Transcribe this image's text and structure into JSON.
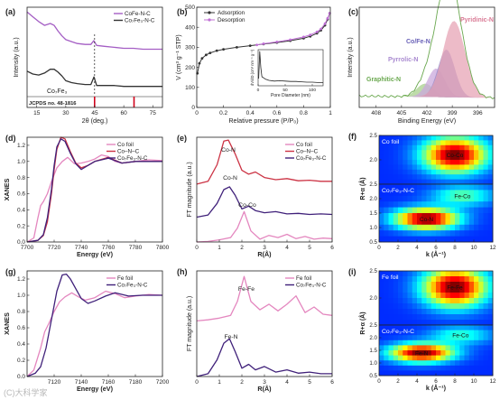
{
  "watermark": "(C)大科学家",
  "chart_data": [
    {
      "panel_label": "(a)",
      "type": "line",
      "xlabel": "2θ (deg.)",
      "ylabel": "Intensity (a.u.)",
      "xlim": [
        10,
        80
      ],
      "xticks": [
        15,
        30,
        45,
        60,
        75
      ],
      "series": [
        {
          "name": "CoFe-N-C",
          "color": "#a45ec4",
          "x": [
            10,
            13,
            16,
            19,
            22,
            24,
            26,
            28,
            30,
            33,
            36,
            40,
            43,
            44.5,
            46,
            50,
            55,
            60,
            65,
            70,
            75,
            80
          ],
          "y": [
            1.0,
            0.95,
            0.9,
            0.86,
            0.88,
            0.86,
            0.8,
            0.75,
            0.71,
            0.69,
            0.67,
            0.66,
            0.66,
            0.7,
            0.65,
            0.64,
            0.63,
            0.62,
            0.62,
            0.61,
            0.61,
            0.61
          ]
        },
        {
          "name": "Co₇Fe₃-N-C",
          "color": "#333333",
          "x": [
            10,
            13,
            16,
            19,
            22,
            24,
            26,
            28,
            30,
            33,
            36,
            40,
            43,
            44.6,
            46,
            50,
            55,
            60,
            65,
            70,
            75,
            80
          ],
          "y": [
            0.38,
            0.35,
            0.34,
            0.36,
            0.4,
            0.4,
            0.37,
            0.33,
            0.28,
            0.26,
            0.25,
            0.24,
            0.24,
            0.32,
            0.23,
            0.23,
            0.23,
            0.22,
            0.22,
            0.22,
            0.22,
            0.22
          ]
        }
      ],
      "reference": {
        "name": "Co₇Fe₃",
        "pdf": "JCPDS no. 48-1816",
        "peaks": [
          44.9,
          65.3
        ]
      },
      "dashed_line_x": 44.9
    },
    {
      "panel_label": "(b)",
      "type": "line",
      "xlabel": "Relative pressure (P/P₀)",
      "ylabel": "V (cm³ g⁻¹ STP)",
      "xlim": [
        0,
        1.0
      ],
      "ylim": [
        0,
        500
      ],
      "xticks": [
        0.0,
        0.2,
        0.4,
        0.6,
        0.8,
        1.0
      ],
      "yticks": [
        0,
        100,
        200,
        300,
        400,
        500
      ],
      "series": [
        {
          "name": "Adsorption",
          "color": "#333333",
          "x": [
            0.005,
            0.02,
            0.04,
            0.07,
            0.1,
            0.15,
            0.2,
            0.3,
            0.4,
            0.5,
            0.6,
            0.7,
            0.8,
            0.85,
            0.9,
            0.93,
            0.96,
            0.98,
            0.995
          ],
          "y": [
            170,
            220,
            245,
            262,
            272,
            283,
            290,
            300,
            308,
            316,
            324,
            333,
            345,
            355,
            370,
            385,
            410,
            440,
            470
          ]
        },
        {
          "name": "Desorption",
          "color": "#c070d6",
          "x": [
            0.995,
            0.98,
            0.96,
            0.93,
            0.9,
            0.85,
            0.8,
            0.7,
            0.6,
            0.5,
            0.45
          ],
          "y": [
            470,
            445,
            418,
            392,
            377,
            362,
            352,
            338,
            327,
            318,
            312
          ]
        }
      ],
      "inset": {
        "xlabel": "Pore Diameter (nm)",
        "ylabel": "dV/dD (cm³ nm⁻¹ g⁻¹)",
        "xlim": [
          0,
          120
        ],
        "xticks": [
          0,
          50,
          100
        ],
        "x": [
          1,
          3,
          5,
          7,
          10,
          14,
          20,
          30,
          40,
          50,
          60,
          70,
          80,
          90,
          100,
          110,
          120
        ],
        "y": [
          0.2,
          0.95,
          0.5,
          0.25,
          0.22,
          0.18,
          0.15,
          0.13,
          0.14,
          0.13,
          0.12,
          0.12,
          0.11,
          0.1,
          0.1,
          0.09,
          0.09
        ]
      }
    },
    {
      "panel_label": "(c)",
      "type": "line",
      "xlabel": "Binding Energy (eV)",
      "ylabel": "Intensity (a.u.)",
      "xlim": [
        410,
        394
      ],
      "xticks": [
        408,
        405,
        402,
        399,
        396
      ],
      "components": [
        {
          "name": "Pyridinic-N",
          "center": 398.8,
          "height": 0.8,
          "width": 1.3,
          "color": "#e7a4b6"
        },
        {
          "name": "Co/Fe-N",
          "center": 399.7,
          "height": 0.5,
          "width": 1.0,
          "color": "#8e86c8"
        },
        {
          "name": "Pyrrolic-N",
          "center": 400.9,
          "height": 0.3,
          "width": 1.0,
          "color": "#c9a8dc"
        },
        {
          "name": "Graphitic-N",
          "center": 402.2,
          "height": 0.14,
          "width": 1.0,
          "color": "#a8d08d"
        }
      ],
      "raw_color": "#6aa84f"
    },
    {
      "panel_label": "(d)",
      "type": "line",
      "xlabel": "Energy (eV)",
      "ylabel": "XANES",
      "xlim": [
        7700,
        7800
      ],
      "ylim": [
        0,
        1.3
      ],
      "xticks": [
        7700,
        7720,
        7740,
        7760,
        7780,
        7800
      ],
      "yticks": [
        0.0,
        0.2,
        0.4,
        0.6,
        0.8,
        1.0,
        1.2
      ],
      "series": [
        {
          "name": "Co foil",
          "color": "#e487bf",
          "x": [
            7700,
            7705,
            7708,
            7710,
            7712,
            7715,
            7718,
            7722,
            7726,
            7730,
            7735,
            7740,
            7745,
            7750,
            7755,
            7760,
            7765,
            7770,
            7780,
            7790,
            7800
          ],
          "y": [
            0.0,
            0.05,
            0.3,
            0.45,
            0.5,
            0.6,
            0.75,
            0.92,
            1.0,
            1.05,
            0.97,
            0.98,
            1.0,
            1.03,
            1.08,
            1.06,
            1.0,
            0.98,
            1.0,
            1.02,
            1.01
          ]
        },
        {
          "name": "Co–N–C",
          "color": "#cc3344",
          "x": [
            7700,
            7708,
            7712,
            7715,
            7718,
            7720,
            7722,
            7725,
            7728,
            7732,
            7736,
            7740,
            7745,
            7750,
            7760,
            7770,
            7780,
            7790,
            7800
          ],
          "y": [
            0.0,
            0.02,
            0.08,
            0.25,
            0.6,
            0.9,
            1.15,
            1.3,
            1.28,
            1.12,
            0.98,
            0.92,
            0.95,
            1.0,
            1.05,
            0.98,
            1.0,
            1.0,
            1.0
          ]
        },
        {
          "name": "Co₇Fe₃-N-C",
          "color": "#40217a",
          "x": [
            7700,
            7708,
            7712,
            7715,
            7718,
            7720,
            7722,
            7725,
            7728,
            7732,
            7736,
            7740,
            7745,
            7750,
            7760,
            7770,
            7780,
            7790,
            7800
          ],
          "y": [
            0.0,
            0.02,
            0.09,
            0.3,
            0.65,
            0.95,
            1.18,
            1.28,
            1.25,
            1.1,
            0.97,
            0.9,
            0.95,
            1.0,
            1.04,
            0.98,
            1.0,
            1.0,
            1.0
          ]
        }
      ]
    },
    {
      "panel_label": "(e)",
      "type": "line",
      "xlabel": "R(Å)",
      "ylabel": "FT magnitude (a.u.)",
      "xlim": [
        0,
        6
      ],
      "xticks": [
        0,
        1,
        2,
        3,
        4,
        5,
        6
      ],
      "series": [
        {
          "name": "Co foil",
          "color": "#e487bf",
          "x": [
            0,
            0.5,
            1.0,
            1.5,
            1.8,
            2.1,
            2.4,
            2.8,
            3.2,
            3.6,
            4.0,
            4.4,
            4.8,
            5.2,
            5.6,
            6.0
          ],
          "y": [
            0.0,
            0.01,
            0.04,
            0.08,
            0.25,
            0.55,
            0.2,
            0.05,
            0.12,
            0.08,
            0.14,
            0.06,
            0.1,
            0.05,
            0.07,
            0.06
          ]
        },
        {
          "name": "Co–N–C",
          "color": "#cc3344",
          "x": [
            0,
            0.5,
            0.9,
            1.2,
            1.4,
            1.7,
            2.0,
            2.3,
            2.6,
            3.0,
            3.5,
            4.0,
            4.5,
            5.0,
            5.5,
            6.0
          ],
          "y": [
            0.0,
            0.05,
            0.35,
            0.78,
            0.8,
            0.55,
            0.25,
            0.18,
            0.22,
            0.12,
            0.08,
            0.1,
            0.06,
            0.07,
            0.05,
            0.05
          ]
        },
        {
          "name": "Co₇Fe₃-N-C",
          "color": "#40217a",
          "x": [
            0,
            0.5,
            0.9,
            1.2,
            1.45,
            1.7,
            2.0,
            2.3,
            2.6,
            3.0,
            3.5,
            4.0,
            4.5,
            5.0,
            5.5,
            6.0
          ],
          "y": [
            0.0,
            0.04,
            0.25,
            0.5,
            0.55,
            0.4,
            0.15,
            0.2,
            0.12,
            0.08,
            0.1,
            0.06,
            0.07,
            0.05,
            0.06,
            0.05
          ]
        }
      ],
      "annotations": [
        "Co-N",
        "Co-N",
        "Co-Co"
      ]
    },
    {
      "panel_label": "(f)",
      "type": "heatmap",
      "xlabel": "k (Å⁻¹)",
      "ylabel": "R+α (Å)",
      "xlim": [
        0,
        12
      ],
      "xticks": [
        0,
        2,
        4,
        6,
        8,
        10,
        12
      ],
      "subpanels": [
        {
          "label": "Co foil",
          "ylim": [
            1.5,
            2.5
          ],
          "yticks": [
            1.5,
            2.0,
            2.5
          ],
          "features": [
            {
              "name": "Co-Co",
              "k": 8.0,
              "r": 2.1,
              "strength": 1.0
            }
          ]
        },
        {
          "label": "Co₇Fe₃-N-C",
          "ylim": [
            0.5,
            2.5
          ],
          "yticks": [
            0.5,
            1.0,
            1.5,
            2.0,
            2.5
          ],
          "features": [
            {
              "name": "Co-N",
              "k": 5.0,
              "r": 1.3,
              "strength": 1.0
            },
            {
              "name": "Fe-Co",
              "k": 8.8,
              "r": 2.1,
              "strength": 0.35
            }
          ]
        }
      ]
    },
    {
      "panel_label": "(g)",
      "type": "line",
      "xlabel": "Energy (eV)",
      "ylabel": "XANES",
      "xlim": [
        7100,
        7200
      ],
      "ylim": [
        0,
        1.3
      ],
      "xticks": [
        7120,
        7140,
        7160,
        7180,
        7200
      ],
      "yticks": [
        0.0,
        0.2,
        0.4,
        0.6,
        0.8,
        1.0,
        1.2
      ],
      "series": [
        {
          "name": "Fe foil",
          "color": "#e487bf",
          "x": [
            7100,
            7105,
            7110,
            7113,
            7116,
            7120,
            7124,
            7128,
            7133,
            7138,
            7143,
            7150,
            7158,
            7165,
            7172,
            7180,
            7190,
            7200
          ],
          "y": [
            0.0,
            0.08,
            0.35,
            0.55,
            0.65,
            0.8,
            0.92,
            0.98,
            1.03,
            0.98,
            0.94,
            0.97,
            1.05,
            1.02,
            0.97,
            0.99,
            1.01,
            1.0
          ]
        },
        {
          "name": "Co₇Fe₃-N-C",
          "color": "#40217a",
          "x": [
            7100,
            7106,
            7110,
            7114,
            7118,
            7122,
            7126,
            7129,
            7132,
            7136,
            7140,
            7145,
            7150,
            7158,
            7165,
            7175,
            7185,
            7200
          ],
          "y": [
            0.0,
            0.04,
            0.12,
            0.35,
            0.7,
            1.05,
            1.25,
            1.26,
            1.2,
            1.08,
            0.96,
            0.9,
            0.93,
            0.99,
            1.03,
            0.99,
            1.0,
            1.0
          ]
        }
      ]
    },
    {
      "panel_label": "(h)",
      "type": "line",
      "xlabel": "R(Å)",
      "ylabel": "FT magnitude (a.u.)",
      "xlim": [
        0,
        6
      ],
      "xticks": [
        0,
        1,
        2,
        3,
        4,
        5,
        6
      ],
      "series": [
        {
          "name": "Fe foil",
          "color": "#e487bf",
          "x": [
            0,
            0.5,
            1.0,
            1.5,
            1.8,
            2.1,
            2.4,
            2.8,
            3.2,
            3.6,
            4.0,
            4.4,
            4.8,
            5.2,
            5.6,
            6.0
          ],
          "y": [
            0.0,
            0.02,
            0.05,
            0.1,
            0.35,
            0.8,
            0.35,
            0.2,
            0.3,
            0.18,
            0.3,
            0.45,
            0.15,
            0.25,
            0.12,
            0.1
          ]
        },
        {
          "name": "Co₇Fe₃-N-C",
          "color": "#40217a",
          "x": [
            0,
            0.5,
            0.9,
            1.2,
            1.45,
            1.7,
            2.0,
            2.3,
            2.6,
            3.0,
            3.5,
            4.0,
            4.5,
            5.0,
            5.5,
            6.0
          ],
          "y": [
            0.0,
            0.05,
            0.3,
            0.6,
            0.68,
            0.45,
            0.15,
            0.22,
            0.12,
            0.18,
            0.08,
            0.12,
            0.06,
            0.08,
            0.05,
            0.05
          ]
        }
      ],
      "annotations": [
        "Fe-Fe",
        "Fe-N"
      ]
    },
    {
      "panel_label": "(i)",
      "type": "heatmap",
      "xlabel": "k (Å⁻¹)",
      "ylabel": "R+α (Å)",
      "xlim": [
        0,
        12
      ],
      "xticks": [
        0,
        2,
        4,
        6,
        8,
        10,
        12
      ],
      "subpanels": [
        {
          "label": "Fe foil",
          "ylim": [
            1.5,
            2.5
          ],
          "yticks": [
            1.5,
            2.0,
            2.5
          ],
          "features": [
            {
              "name": "Fe-Fe",
              "k": 8.0,
              "r": 2.2,
              "strength": 1.0
            }
          ]
        },
        {
          "label": "Co₇Fe₃-N-C",
          "ylim": [
            0.5,
            2.5
          ],
          "yticks": [
            0.5,
            1.0,
            1.5,
            2.0,
            2.5
          ],
          "features": [
            {
              "name": "Fe-N",
              "k": 4.5,
              "r": 1.4,
              "strength": 1.0
            },
            {
              "name": "Fe-Co",
              "k": 8.6,
              "r": 2.1,
              "strength": 0.3
            }
          ]
        }
      ]
    }
  ]
}
